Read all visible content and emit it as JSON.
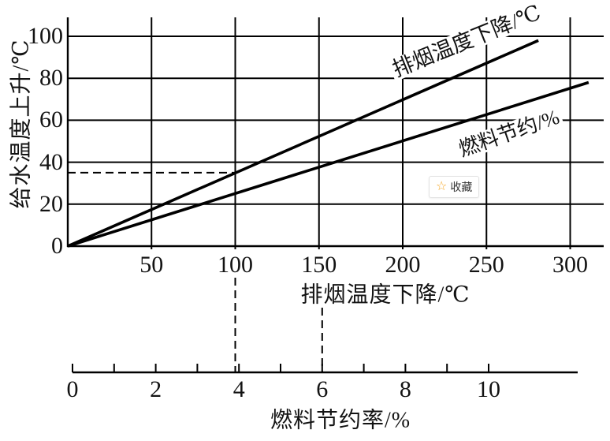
{
  "colors": {
    "line": "#000000",
    "badge_star": "#f5a623",
    "badge_border": "#e2e2e2",
    "badge_text": "#333333"
  },
  "overlay_badge": {
    "star_icon": "☆",
    "label": "收藏"
  },
  "chart_data": {
    "type": "line",
    "top_chart": {
      "ylabel": "给水温度上升/℃",
      "xlabel": "排烟温度下降/℃",
      "xlim": [
        0,
        320
      ],
      "ylim": [
        0,
        100
      ],
      "x_ticks": [
        50,
        100,
        150,
        200,
        250,
        300
      ],
      "y_ticks": [
        0,
        20,
        40,
        60,
        80,
        100
      ],
      "grid": true,
      "series": [
        {
          "name": "排烟温度下降/℃",
          "x": [
            0,
            281
          ],
          "y": [
            0,
            98
          ],
          "relation": "y = 0.35x"
        },
        {
          "name": "燃料节约/%",
          "x": [
            0,
            311
          ],
          "y": [
            0,
            78
          ],
          "relation": "y = 0.25x"
        }
      ],
      "guide_lines": {
        "horizontal_y": 35,
        "vertical_x": 100
      }
    },
    "bottom_axis": {
      "label": "燃料节约率/%",
      "range": [
        0,
        10
      ],
      "minor_ticks": [
        0,
        1,
        2,
        3,
        4,
        5,
        6,
        7,
        8,
        9,
        10
      ],
      "tick_labels": [
        0,
        2,
        4,
        6,
        8,
        10
      ],
      "guide_x_values": [
        4,
        6
      ]
    }
  }
}
